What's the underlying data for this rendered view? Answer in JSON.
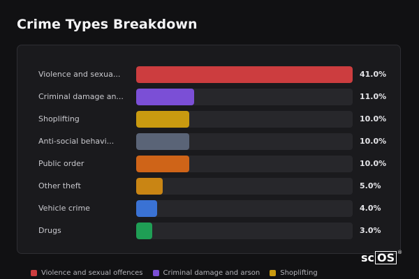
{
  "chart_data": {
    "type": "bar",
    "orientation": "horizontal",
    "title": "Crime Types Breakdown",
    "categories": [
      "Violence and sexua...",
      "Criminal damage an...",
      "Shoplifting",
      "Anti-social behavi...",
      "Public order",
      "Other theft",
      "Vehicle crime",
      "Drugs"
    ],
    "values": [
      41.0,
      11.0,
      10.0,
      10.0,
      10.0,
      5.0,
      4.0,
      3.0
    ],
    "value_labels": [
      "41.0%",
      "11.0%",
      "10.0%",
      "10.0%",
      "10.0%",
      "5.0%",
      "4.0%",
      "3.0%"
    ],
    "colors": [
      "#cc3d3f",
      "#7b4fd6",
      "#c99a10",
      "#5a6477",
      "#cf6418",
      "#c98514",
      "#3a72d4",
      "#1f9e55"
    ],
    "xlim": [
      0,
      41
    ],
    "legend": [
      {
        "label": "Violence and sexual offences",
        "color": "#cc3d3f"
      },
      {
        "label": "Criminal damage and arson",
        "color": "#7b4fd6"
      },
      {
        "label": "Shoplifting",
        "color": "#c99a10"
      }
    ],
    "legend_position": "bottom",
    "grid": false
  },
  "watermark": {
    "text_left": "sc",
    "text_boxed": "OS",
    "mark": "®"
  }
}
